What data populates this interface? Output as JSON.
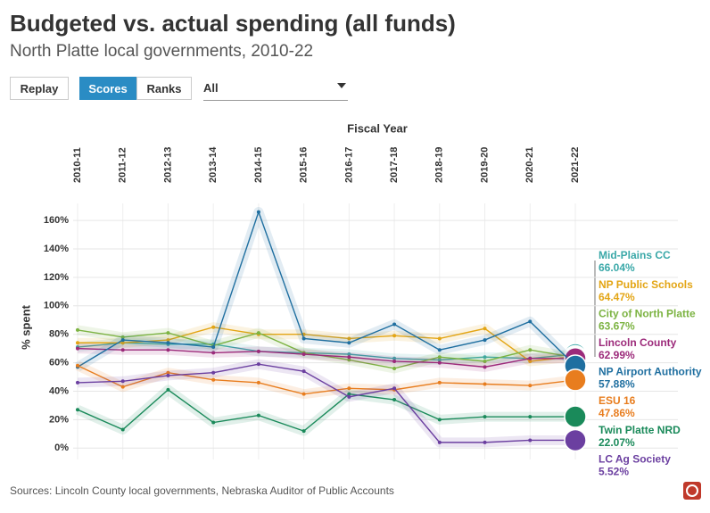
{
  "controls": {
    "buttons": [
      "Replay",
      "Scores",
      "Ranks"
    ],
    "dropdown": "All"
  },
  "source": "Sources: Lincoln County local governments, Nebraska Auditor of Public Accounts",
  "chart_data": {
    "type": "line",
    "title": "Budgeted vs. actual spending (all funds)",
    "subtitle": "North Platte local governments, 2010-22",
    "x_label": "Fiscal Year",
    "y_label": "% spent",
    "categories": [
      "2010-11",
      "2011-12",
      "2012-13",
      "2013-14",
      "2014-15",
      "2015-16",
      "2016-17",
      "2017-18",
      "2018-19",
      "2019-20",
      "2020-21",
      "2021-22"
    ],
    "ylim": [
      -8,
      172
    ],
    "yticks": [
      {
        "value": 0,
        "label": "0%"
      },
      {
        "value": 20,
        "label": "20%"
      },
      {
        "value": 40,
        "label": "40%"
      },
      {
        "value": 60,
        "label": "60%"
      },
      {
        "value": 80,
        "label": "80%"
      },
      {
        "value": 100,
        "label": "100%"
      },
      {
        "value": 120,
        "label": "120%"
      },
      {
        "value": 140,
        "label": "140%"
      },
      {
        "value": 160,
        "label": "160%"
      }
    ],
    "grid": true,
    "series": [
      {
        "name": "Mid-Plains CC",
        "color": "#3aa8a8",
        "values": [
          71,
          74,
          73,
          73,
          68,
          67,
          66,
          63,
          62,
          64,
          63,
          66.04
        ],
        "value_labels": [
          null,
          null,
          null,
          null,
          null,
          null,
          null,
          null,
          null,
          null,
          null,
          "66.04%"
        ]
      },
      {
        "name": "NP Public Schools",
        "color": "#e3a514",
        "values": [
          74,
          74,
          76,
          85,
          80,
          80,
          77,
          79,
          77,
          84,
          61,
          64.47
        ],
        "value_labels": [
          null,
          null,
          null,
          null,
          null,
          null,
          null,
          null,
          null,
          null,
          null,
          "64.47%"
        ]
      },
      {
        "name": "City of North Platte",
        "color": "#7cb342",
        "values": [
          83,
          78,
          81,
          72,
          81,
          67,
          62,
          56,
          64,
          61,
          69,
          63.67
        ],
        "value_labels": [
          null,
          null,
          null,
          null,
          null,
          null,
          null,
          null,
          null,
          null,
          null,
          "63.67%"
        ]
      },
      {
        "name": "Lincoln County",
        "color": "#9c2a7a",
        "values": [
          70,
          69,
          69,
          67,
          68,
          66,
          64,
          61,
          60,
          57,
          63,
          62.99
        ],
        "value_labels": [
          null,
          null,
          null,
          null,
          null,
          null,
          null,
          null,
          null,
          null,
          null,
          "62.99%"
        ]
      },
      {
        "name": "NP Airport Authority",
        "color": "#1f6fa0",
        "values": [
          57,
          76,
          74,
          71,
          166,
          77,
          74,
          87,
          69,
          76,
          89,
          57.88
        ],
        "value_labels": [
          null,
          null,
          null,
          null,
          null,
          null,
          null,
          null,
          null,
          null,
          null,
          "57.88%"
        ]
      },
      {
        "name": "ESU 16",
        "color": "#e87d1e",
        "values": [
          58,
          43,
          53,
          48,
          46,
          38,
          42,
          41,
          46,
          45,
          44,
          47.86
        ],
        "value_labels": [
          null,
          null,
          null,
          null,
          null,
          null,
          null,
          null,
          null,
          null,
          null,
          "47.86%"
        ]
      },
      {
        "name": "Twin Platte NRD",
        "color": "#1a8a5a",
        "values": [
          27,
          13,
          41,
          18,
          23,
          12,
          38,
          34,
          20,
          22,
          22,
          22.07
        ],
        "value_labels": [
          null,
          null,
          null,
          null,
          null,
          null,
          null,
          null,
          null,
          null,
          null,
          "22.07%"
        ]
      },
      {
        "name": "LC Ag Society",
        "color": "#6b3fa0",
        "values": [
          46,
          47,
          51,
          53,
          59,
          54,
          36,
          42,
          4,
          4,
          5.5,
          5.52
        ],
        "value_labels": [
          null,
          null,
          null,
          null,
          null,
          null,
          null,
          null,
          null,
          null,
          null,
          "5.52%"
        ]
      }
    ]
  }
}
